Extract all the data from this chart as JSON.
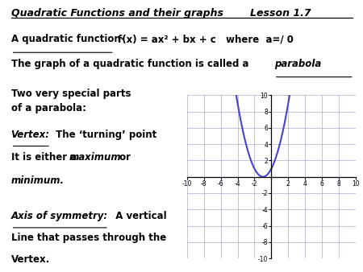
{
  "title_left": "Quadratic Functions and their graphs",
  "title_right": "Lesson 1.7",
  "line1_ul": "A quadratic function-",
  "line1_formula": "f(x) = ax² + bx + c   where  a=/ 0",
  "line2_main": "The graph of a quadratic function is called a",
  "line2_italic": "parabola",
  "line3": "Two very special parts\nof a parabola:",
  "line4_ul": "Vertex:",
  "line4_rest": " The ‘turning’ point",
  "line4b": "It is either a ",
  "line4b_italic": "maximum",
  "line4b_rest": " or",
  "line4c_italic": "minimum.",
  "line5_ul": "Axis of symmetry:",
  "line5_rest": "  A vertical",
  "line5b": "Line that passes through the",
  "line5c": "Vertex.",
  "graph_xlim": [
    -10,
    10
  ],
  "graph_ylim": [
    -10,
    10
  ],
  "graph_xticks": [
    -10,
    -8,
    -6,
    -4,
    -2,
    0,
    2,
    4,
    6,
    8,
    10
  ],
  "graph_yticks": [
    -10,
    -8,
    -6,
    -4,
    -2,
    0,
    2,
    4,
    6,
    8,
    10
  ],
  "curve_color": "#4444cc",
  "grid_color": "#aaaacc",
  "background": "white",
  "parabola_a": 1,
  "parabola_b": 2,
  "parabola_c": 1
}
